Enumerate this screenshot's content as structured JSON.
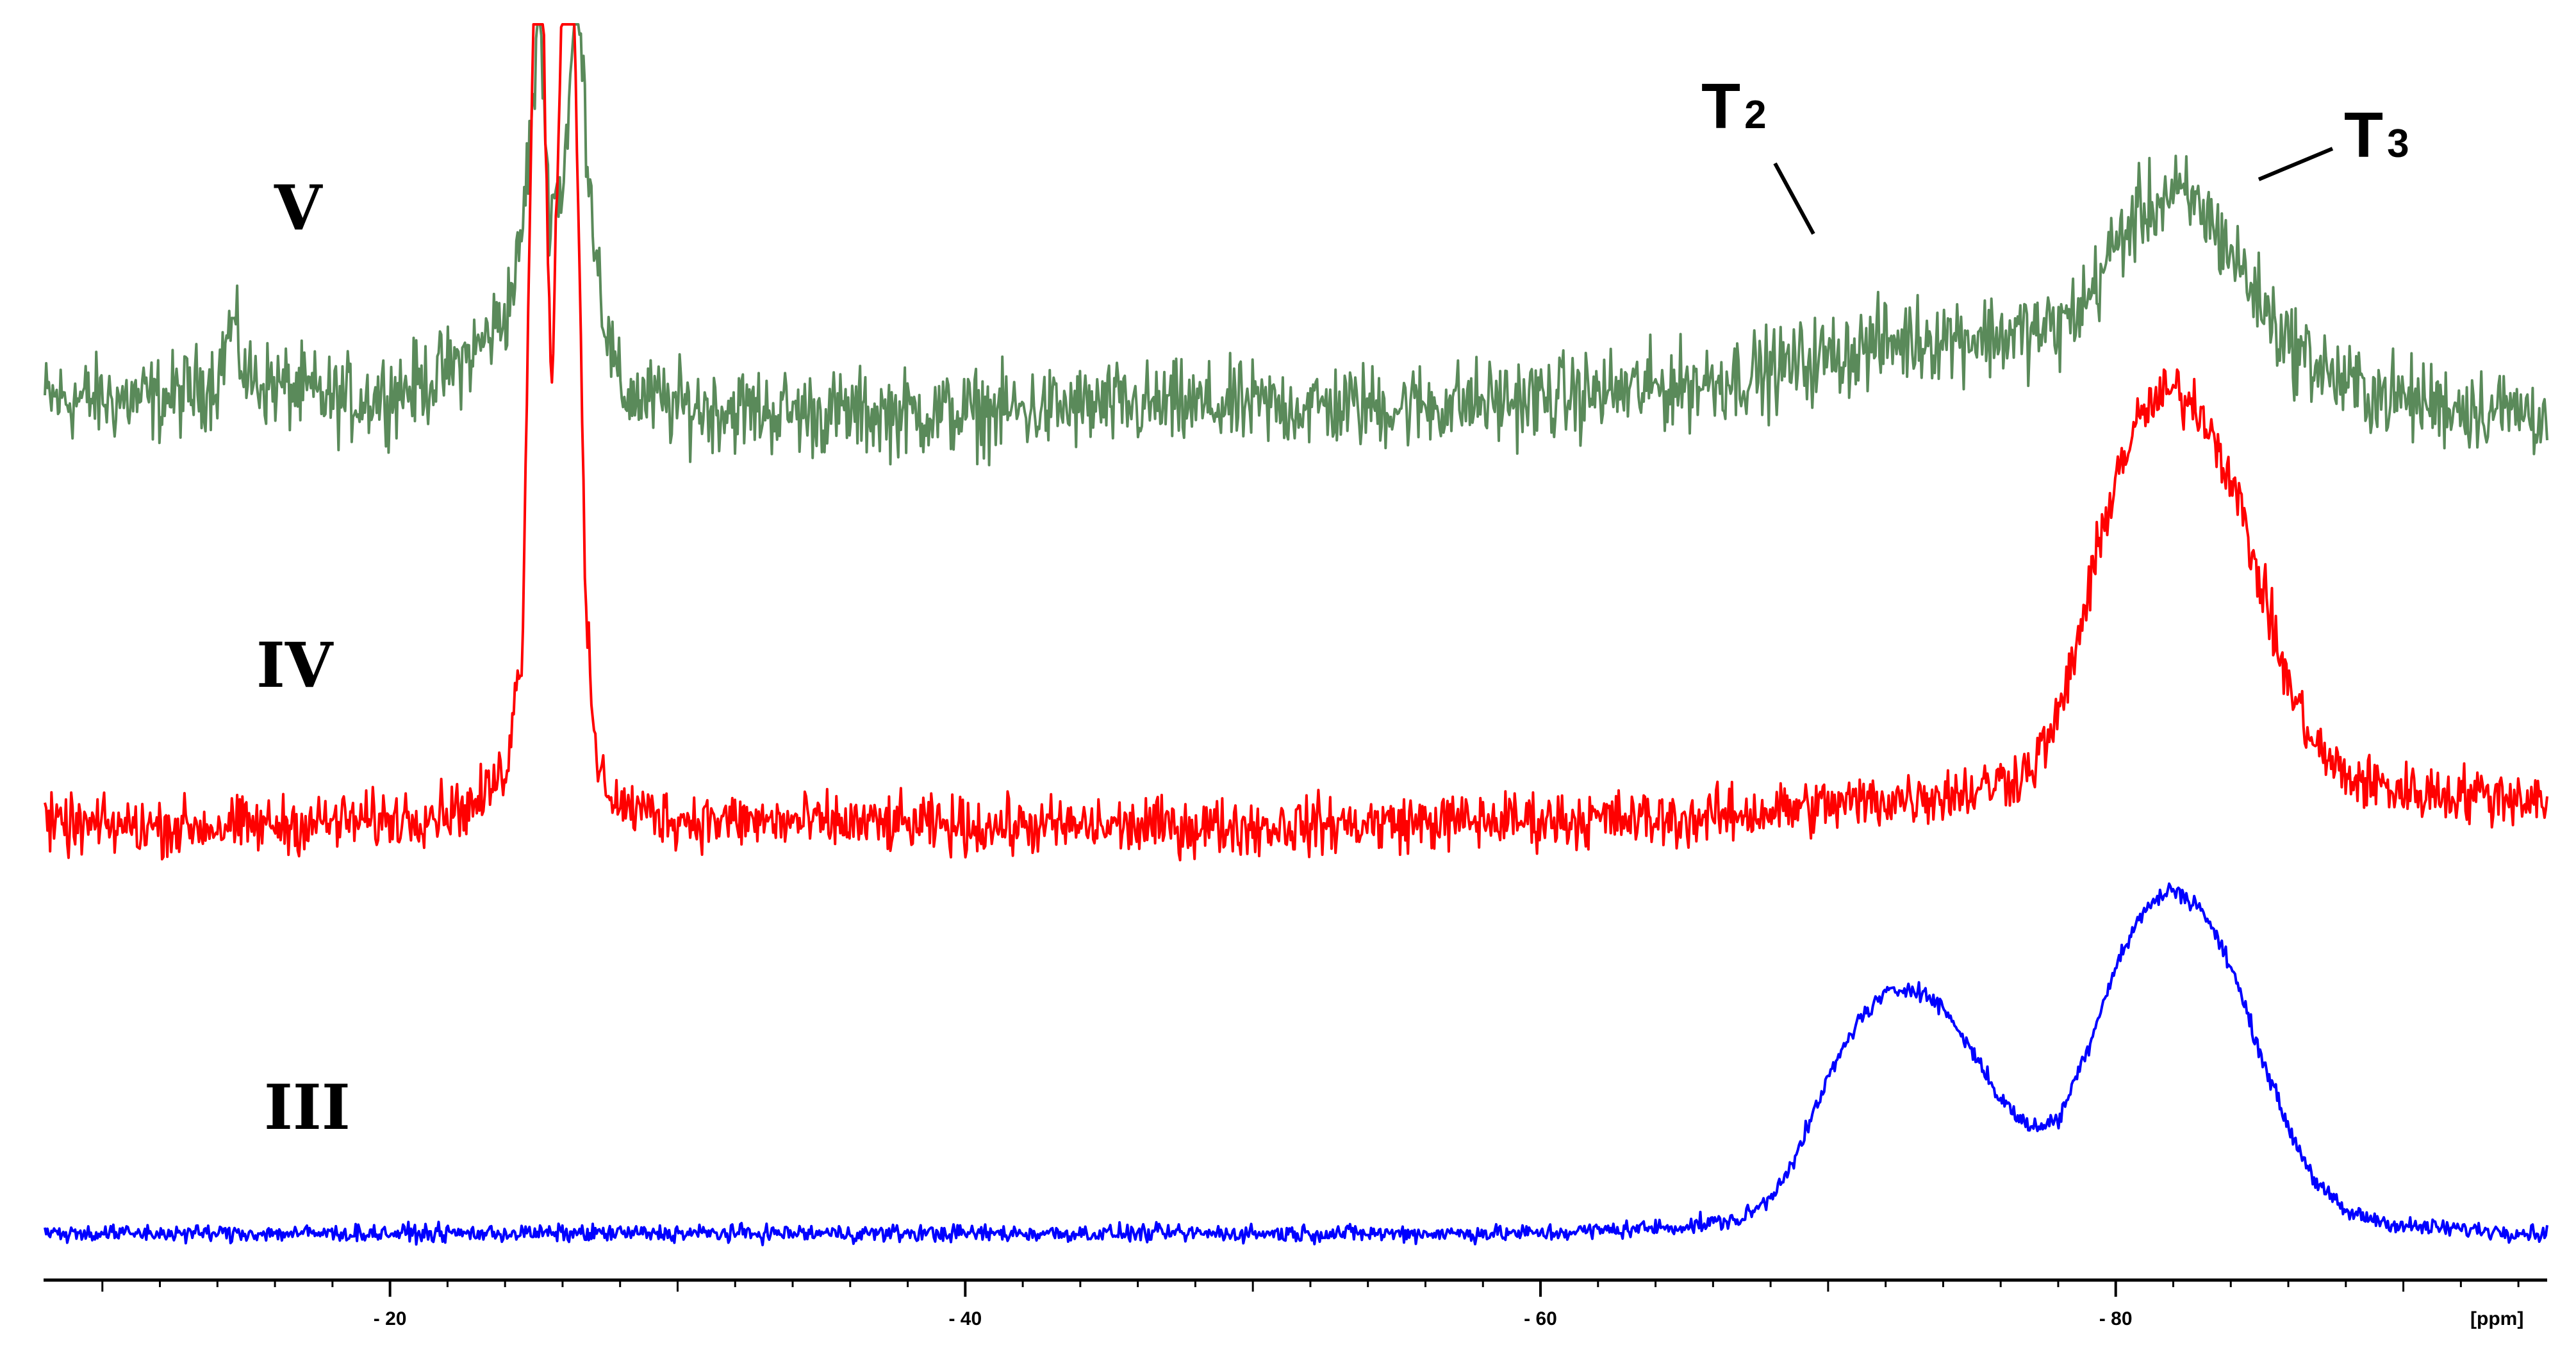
{
  "chart_data": {
    "type": "line",
    "title": "",
    "xlabel": "[ppm]",
    "ylabel": "",
    "x_reversed": true,
    "xlim": [
      -8,
      -95
    ],
    "xticks": [
      -20,
      -40,
      -60,
      -80
    ],
    "xtick_labels": [
      "- 20",
      "- 40",
      "- 60",
      "- 80"
    ],
    "grid": false,
    "legend": "none",
    "series": [
      {
        "name": "V",
        "color": "#5a8a5a",
        "noise": 0.3,
        "x": [
          -8,
          -10,
          -12,
          -13,
          -14,
          -14.5,
          -15,
          -16,
          -17,
          -18,
          -19,
          -20,
          -21,
          -22,
          -23,
          -24,
          -24.5,
          -25,
          -25.2,
          -25.5,
          -26,
          -26.5,
          -27,
          -27.5,
          -28,
          -30,
          -35,
          -40,
          -45,
          -50,
          -55,
          -60,
          -65,
          -68,
          -70,
          -72,
          -74,
          -76,
          -78,
          -79,
          -80,
          -81,
          -82,
          -83,
          -84,
          -85,
          -86,
          -88,
          -90,
          -92,
          -95
        ],
        "y": [
          0.2,
          0.2,
          0.2,
          0.3,
          0.5,
          1.3,
          0.5,
          0.4,
          0.3,
          0.2,
          0.2,
          0.3,
          0.4,
          0.6,
          0.9,
          1.4,
          2.2,
          4.5,
          6.0,
          3.0,
          3.2,
          6.0,
          3.0,
          1.2,
          0.3,
          0.1,
          0.0,
          0.0,
          0.1,
          0.1,
          0.1,
          0.2,
          0.4,
          0.6,
          0.8,
          1.0,
          1.1,
          1.1,
          1.2,
          1.6,
          2.4,
          2.9,
          3.1,
          2.9,
          2.3,
          1.6,
          1.0,
          0.4,
          0.2,
          0.1,
          0.0
        ]
      },
      {
        "name": "IV",
        "color": "#ff0000",
        "noise": 0.2,
        "x": [
          -8,
          -15,
          -20,
          -23,
          -24,
          -24.6,
          -25,
          -25.3,
          -25.6,
          -26,
          -26.4,
          -26.8,
          -27.2,
          -28,
          -30,
          -40,
          -50,
          -60,
          -65,
          -70,
          -75,
          -77,
          -78,
          -79,
          -80,
          -81,
          -82,
          -83,
          -84,
          -85,
          -86,
          -87,
          -88,
          -90,
          -95
        ],
        "y": [
          0.0,
          0.0,
          0.1,
          0.3,
          0.8,
          2.5,
          12.0,
          12.0,
          6.0,
          12.0,
          12.0,
          3.0,
          0.8,
          0.3,
          0.1,
          0.0,
          0.0,
          0.1,
          0.1,
          0.3,
          0.5,
          0.8,
          1.5,
          3.2,
          5.0,
          5.9,
          6.2,
          5.9,
          5.0,
          3.5,
          2.0,
          1.1,
          0.7,
          0.5,
          0.4
        ]
      },
      {
        "name": "III",
        "color": "#0000ff",
        "noise": 0.06,
        "x": [
          -8,
          -20,
          -40,
          -60,
          -65,
          -67,
          -68,
          -69,
          -70,
          -71,
          -72,
          -73,
          -74,
          -75,
          -76,
          -77,
          -78,
          -79,
          -80,
          -81,
          -82,
          -83,
          -84,
          -85,
          -86,
          -87,
          -88,
          -90,
          -95
        ],
        "y": [
          0.0,
          0.0,
          0.0,
          0.0,
          0.1,
          0.2,
          0.5,
          1.2,
          2.2,
          3.0,
          3.4,
          3.5,
          3.2,
          2.6,
          1.9,
          1.5,
          1.6,
          2.6,
          3.8,
          4.6,
          4.9,
          4.6,
          3.8,
          2.6,
          1.5,
          0.7,
          0.3,
          0.1,
          0.0
        ]
      }
    ],
    "annotations": [
      {
        "main": "T",
        "sub": "2",
        "x": -72.5
      },
      {
        "main": "T",
        "sub": "3",
        "x": -85
      }
    ]
  }
}
